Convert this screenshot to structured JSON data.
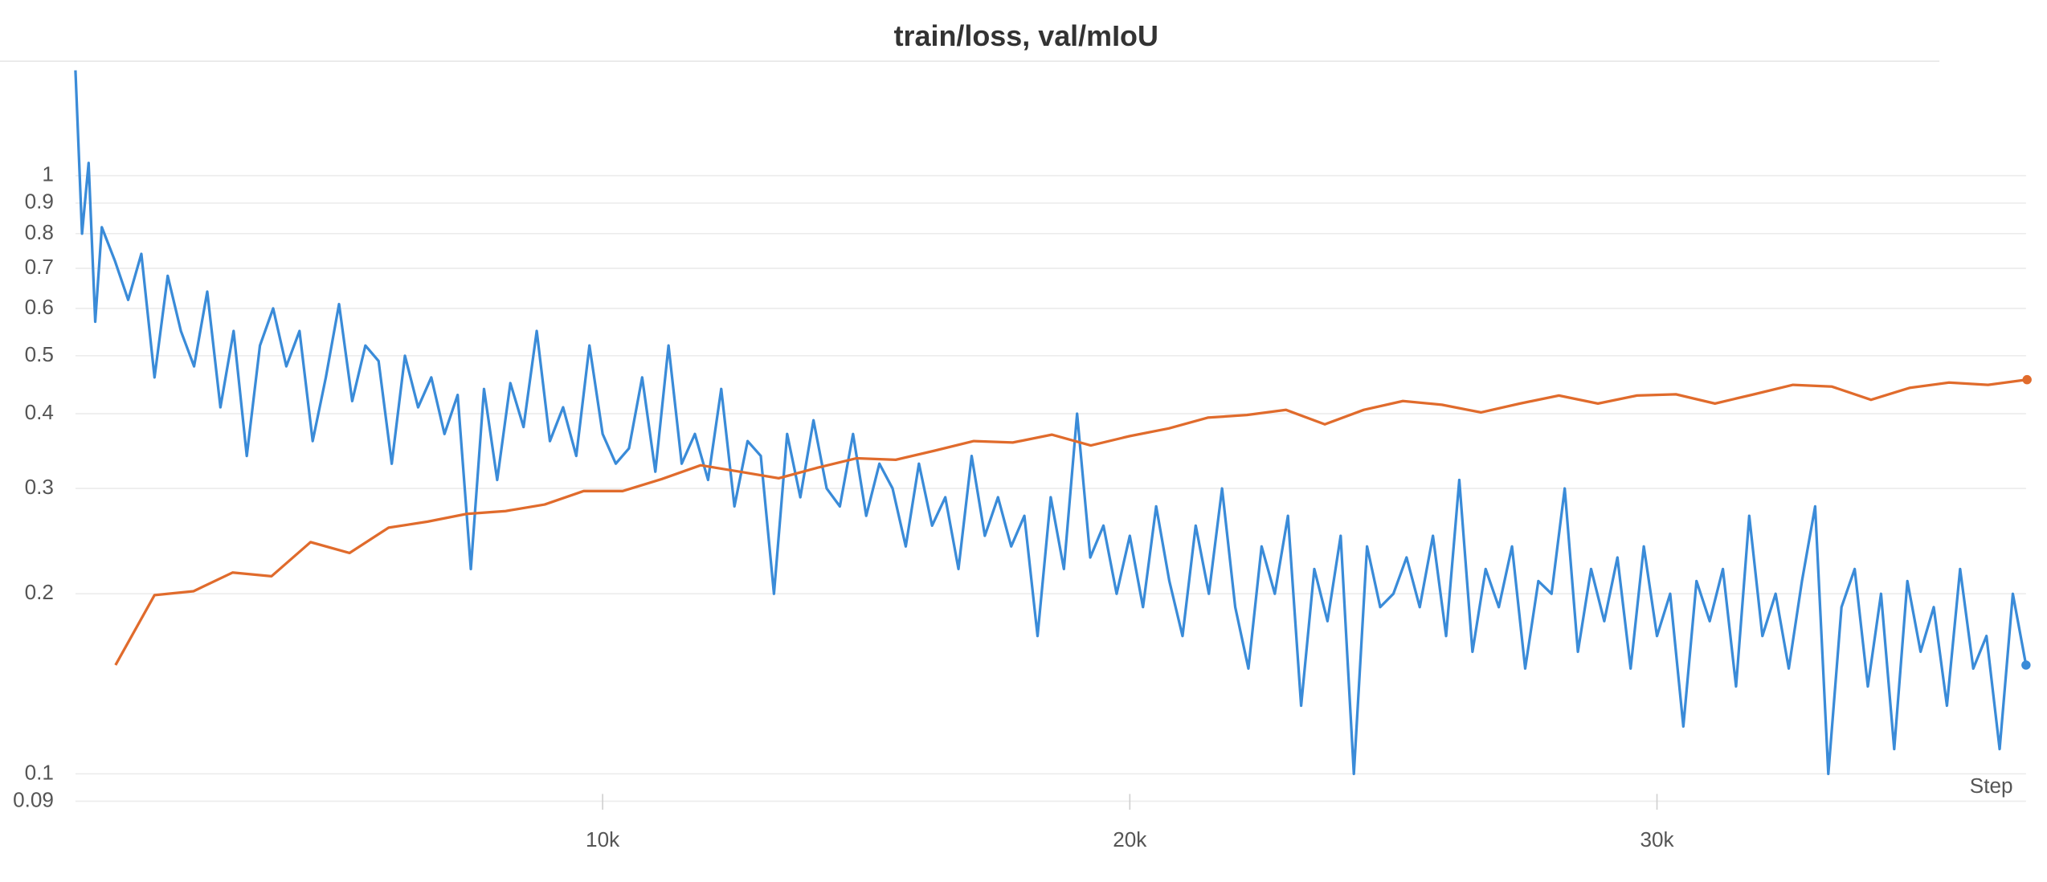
{
  "chart_data": {
    "type": "line",
    "title": "train/loss, val/mIoU",
    "xlabel": "Step",
    "ylog": true,
    "grid": true,
    "xlim": [
      0,
      37000
    ],
    "ylim": [
      0.088,
      1.55
    ],
    "xticks": [
      {
        "value": 10000,
        "label": "10k"
      },
      {
        "value": 20000,
        "label": "20k"
      },
      {
        "value": 30000,
        "label": "30k"
      }
    ],
    "yticks": [
      0.09,
      0.1,
      0.2,
      0.3,
      0.4,
      0.5,
      0.6,
      0.7,
      0.8,
      0.9,
      1
    ],
    "series": [
      {
        "name": "train/loss",
        "color": "#3a8bd8",
        "x": [
          0,
          125,
          250,
          375,
          500,
          750,
          1000,
          1250,
          1500,
          1750,
          2000,
          2250,
          2500,
          2750,
          3000,
          3250,
          3500,
          3750,
          4000,
          4250,
          4500,
          4750,
          5000,
          5250,
          5500,
          5750,
          6000,
          6250,
          6500,
          6750,
          7000,
          7250,
          7500,
          7750,
          8000,
          8250,
          8500,
          8750,
          9000,
          9250,
          9500,
          9750,
          10000,
          10250,
          10500,
          10750,
          11000,
          11250,
          11500,
          11750,
          12000,
          12250,
          12500,
          12750,
          13000,
          13250,
          13500,
          13750,
          14000,
          14250,
          14500,
          14750,
          15000,
          15250,
          15500,
          15750,
          16000,
          16250,
          16500,
          16750,
          17000,
          17250,
          17500,
          17750,
          18000,
          18250,
          18500,
          18750,
          19000,
          19250,
          19500,
          19750,
          20000,
          20250,
          20500,
          20750,
          21000,
          21250,
          21500,
          21750,
          22000,
          22250,
          22500,
          22750,
          23000,
          23250,
          23500,
          23750,
          24000,
          24250,
          24500,
          24750,
          25000,
          25250,
          25500,
          25750,
          26000,
          26250,
          26500,
          26750,
          27000,
          27250,
          27500,
          27750,
          28000,
          28250,
          28500,
          28750,
          29000,
          29250,
          29500,
          29750,
          30000,
          30250,
          30500,
          30750,
          31000,
          31250,
          31500,
          31750,
          32000,
          32250,
          32500,
          32750,
          33000,
          33250,
          33500,
          33750,
          34000,
          34250,
          34500,
          34750,
          35000,
          35250,
          35500,
          35750,
          36000,
          36250,
          36500,
          36750,
          37000
        ],
        "values": [
          1.5,
          0.8,
          1.05,
          0.57,
          0.82,
          0.72,
          0.62,
          0.74,
          0.46,
          0.68,
          0.55,
          0.48,
          0.64,
          0.41,
          0.55,
          0.34,
          0.52,
          0.6,
          0.48,
          0.55,
          0.36,
          0.46,
          0.61,
          0.42,
          0.52,
          0.49,
          0.33,
          0.5,
          0.41,
          0.46,
          0.37,
          0.43,
          0.22,
          0.44,
          0.31,
          0.45,
          0.38,
          0.55,
          0.36,
          0.41,
          0.34,
          0.52,
          0.37,
          0.33,
          0.35,
          0.46,
          0.32,
          0.52,
          0.33,
          0.37,
          0.31,
          0.44,
          0.28,
          0.36,
          0.34,
          0.2,
          0.37,
          0.29,
          0.39,
          0.3,
          0.28,
          0.37,
          0.27,
          0.33,
          0.3,
          0.24,
          0.33,
          0.26,
          0.29,
          0.22,
          0.34,
          0.25,
          0.29,
          0.24,
          0.27,
          0.17,
          0.29,
          0.22,
          0.4,
          0.23,
          0.26,
          0.2,
          0.25,
          0.19,
          0.28,
          0.21,
          0.17,
          0.26,
          0.2,
          0.3,
          0.19,
          0.15,
          0.24,
          0.2,
          0.27,
          0.13,
          0.22,
          0.18,
          0.25,
          0.1,
          0.24,
          0.19,
          0.2,
          0.23,
          0.19,
          0.25,
          0.17,
          0.31,
          0.16,
          0.22,
          0.19,
          0.24,
          0.15,
          0.21,
          0.2,
          0.3,
          0.16,
          0.22,
          0.18,
          0.23,
          0.15,
          0.24,
          0.17,
          0.2,
          0.12,
          0.21,
          0.18,
          0.22,
          0.14,
          0.27,
          0.17,
          0.2,
          0.15,
          0.21,
          0.28,
          0.1,
          0.19,
          0.22,
          0.14,
          0.2,
          0.11,
          0.21,
          0.16,
          0.19,
          0.13,
          0.22,
          0.15,
          0.17,
          0.11,
          0.2,
          0.152
        ]
      },
      {
        "name": "val/mIoU",
        "color": "#e06b2c",
        "x": [
          760,
          1500,
          2240,
          2980,
          3720,
          4460,
          5200,
          5940,
          6680,
          7420,
          8160,
          8900,
          9640,
          10380,
          11120,
          11860,
          12600,
          13340,
          14080,
          14820,
          15560,
          16300,
          17040,
          17780,
          18520,
          19260,
          20000,
          20740,
          21480,
          22220,
          22960,
          23700,
          24440,
          25180,
          25920,
          26660,
          27400,
          28140,
          28880,
          29620,
          30360,
          31100,
          31840,
          32580,
          33320,
          34060,
          34800,
          35540,
          36280,
          37020
        ],
        "values": [
          0.152,
          0.199,
          0.202,
          0.217,
          0.214,
          0.244,
          0.234,
          0.258,
          0.264,
          0.272,
          0.275,
          0.282,
          0.297,
          0.297,
          0.311,
          0.328,
          0.32,
          0.312,
          0.325,
          0.337,
          0.335,
          0.347,
          0.36,
          0.358,
          0.369,
          0.354,
          0.367,
          0.378,
          0.394,
          0.398,
          0.406,
          0.384,
          0.406,
          0.42,
          0.414,
          0.402,
          0.416,
          0.429,
          0.416,
          0.429,
          0.431,
          0.416,
          0.431,
          0.447,
          0.444,
          0.422,
          0.442,
          0.451,
          0.447,
          0.456
        ]
      }
    ]
  }
}
